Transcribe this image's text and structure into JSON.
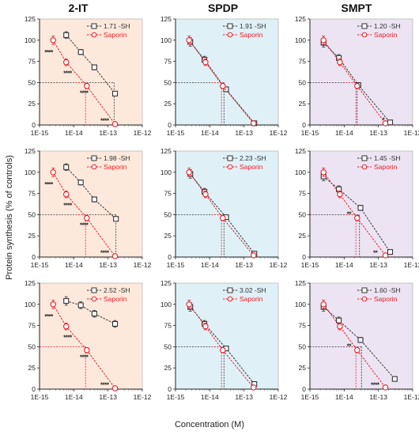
{
  "figure": {
    "column_titles": [
      "2-IT",
      "SPDP",
      "SMPT"
    ],
    "ylabel": "Protein synthesis (% of controls)",
    "xlabel": "Concentration (M)",
    "colors": {
      "conjugate": "#333333",
      "saporin": "#e8202a",
      "bg_2IT": "#fde9dc",
      "bg_SPDP": "#dff0f6",
      "bg_SMPT": "#ece4f3"
    }
  },
  "chart_data": [
    {
      "type": "scatter",
      "row": 0,
      "col": 0,
      "xscale": "log",
      "xlim": [
        1e-15,
        1e-12
      ],
      "ylim": [
        0,
        125
      ],
      "yticks": [
        0,
        25,
        50,
        75,
        100,
        125
      ],
      "xticks": [
        "1E-15",
        "1E-14",
        "1E-13",
        "1E-12"
      ],
      "grid": false,
      "legend": "top-right",
      "series": [
        {
          "name": "1.71 -SH",
          "marker": "square",
          "x": [
            6e-15,
            1.6e-14,
            4e-14,
            1.6e-13
          ],
          "y": [
            106,
            86,
            68,
            37
          ],
          "err": [
            4,
            3,
            3,
            2
          ],
          "ic50": 1.5e-13,
          "ic50_extends_to_yaxis": false
        },
        {
          "name": "Saporin",
          "marker": "circle",
          "x": [
            2.5e-15,
            6e-15,
            2.4e-14,
            1.6e-13
          ],
          "y": [
            100,
            74,
            46,
            1
          ],
          "err": [
            5,
            4,
            3,
            1
          ],
          "ic50": 2.2e-14,
          "ic50_extends_to_yaxis": false
        }
      ],
      "annotations": [
        {
          "text": "****",
          "x": 1.4e-15,
          "y": 86
        },
        {
          "text": "****",
          "x": 5e-15,
          "y": 61
        },
        {
          "text": "****",
          "x": 1.5e-14,
          "y": 38
        },
        {
          "text": "****",
          "x": 6e-14,
          "y": 5
        }
      ]
    },
    {
      "type": "scatter",
      "row": 0,
      "col": 1,
      "xscale": "log",
      "xlim": [
        1e-15,
        1e-12
      ],
      "ylim": [
        0,
        125
      ],
      "yticks": [
        0,
        25,
        50,
        75,
        100,
        125
      ],
      "xticks": [
        "1E-15",
        "1E-14",
        "1E-13",
        "1E-12"
      ],
      "grid": false,
      "legend": "top-right",
      "series": [
        {
          "name": "1.91 -SH",
          "marker": "square",
          "x": [
            2.7e-15,
            7e-15,
            3e-14,
            2e-13
          ],
          "y": [
            98,
            77,
            42,
            2
          ],
          "err": [
            5,
            4,
            2,
            1
          ],
          "ic50": 2.6e-14,
          "ic50_extends_to_yaxis": false
        },
        {
          "name": "Saporin",
          "marker": "circle",
          "x": [
            2.5e-15,
            7.5e-15,
            2.4e-14,
            1.9e-13
          ],
          "y": [
            100,
            74,
            46,
            2
          ],
          "err": [
            5,
            4,
            3,
            1
          ],
          "ic50": 2.2e-14,
          "ic50_extends_to_yaxis": false
        }
      ],
      "annotations": []
    },
    {
      "type": "scatter",
      "row": 0,
      "col": 2,
      "xscale": "log",
      "xlim": [
        1e-15,
        1e-12
      ],
      "ylim": [
        0,
        125
      ],
      "yticks": [
        0,
        25,
        50,
        75,
        100,
        125
      ],
      "xticks": [
        "1E-15",
        "1E-14",
        "1E-13",
        "1E-12"
      ],
      "grid": false,
      "legend": "top-right",
      "series": [
        {
          "name": "1.20 -SH",
          "marker": "square",
          "x": [
            2.5e-15,
            7e-15,
            2.6e-14,
            2.2e-13
          ],
          "y": [
            97,
            79,
            47,
            3
          ],
          "err": [
            5,
            4,
            3,
            1
          ],
          "ic50": 2.4e-14,
          "ic50_extends_to_yaxis": false
        },
        {
          "name": "Saporin",
          "marker": "circle",
          "x": [
            2.5e-15,
            7.5e-15,
            2.4e-14,
            1.6e-13
          ],
          "y": [
            100,
            74,
            46,
            2
          ],
          "err": [
            5,
            4,
            3,
            1
          ],
          "ic50": 2.2e-14,
          "ic50_extends_to_yaxis": false
        }
      ],
      "annotations": [
        {
          "text": "*",
          "x": 1.3e-13,
          "y": 6
        }
      ]
    },
    {
      "type": "scatter",
      "row": 1,
      "col": 0,
      "xscale": "log",
      "xlim": [
        1e-15,
        1e-12
      ],
      "ylim": [
        0,
        125
      ],
      "yticks": [
        0,
        25,
        50,
        75,
        100,
        125
      ],
      "xticks": [
        "1E-15",
        "1E-14",
        "1E-13",
        "1E-12"
      ],
      "grid": false,
      "legend": "top-right",
      "series": [
        {
          "name": "1.98 -SH",
          "marker": "square",
          "x": [
            6e-15,
            1.6e-14,
            4e-14,
            1.7e-13
          ],
          "y": [
            106,
            88,
            68,
            45
          ],
          "err": [
            4,
            3,
            3,
            2
          ],
          "ic50": 1.7e-13,
          "ic50_extends_to_yaxis": false
        },
        {
          "name": "Saporin",
          "marker": "circle",
          "x": [
            2.5e-15,
            6e-15,
            2.4e-14,
            1.6e-13
          ],
          "y": [
            100,
            74,
            46,
            1
          ],
          "err": [
            5,
            4,
            3,
            1
          ],
          "ic50": 2.2e-14,
          "ic50_extends_to_yaxis": false
        }
      ],
      "annotations": [
        {
          "text": "****",
          "x": 1.4e-15,
          "y": 86
        },
        {
          "text": "****",
          "x": 5e-15,
          "y": 61
        },
        {
          "text": "****",
          "x": 1.5e-14,
          "y": 38
        },
        {
          "text": "****",
          "x": 6e-14,
          "y": 5
        }
      ]
    },
    {
      "type": "scatter",
      "row": 1,
      "col": 1,
      "xscale": "log",
      "xlim": [
        1e-15,
        1e-12
      ],
      "ylim": [
        0,
        125
      ],
      "yticks": [
        0,
        25,
        50,
        75,
        100,
        125
      ],
      "xticks": [
        "1E-15",
        "1E-14",
        "1E-13",
        "1E-12"
      ],
      "grid": false,
      "legend": "top-right",
      "series": [
        {
          "name": "2.23 -SH",
          "marker": "square",
          "x": [
            2.7e-15,
            7e-15,
            3e-14,
            2e-13
          ],
          "y": [
            98,
            77,
            47,
            4
          ],
          "err": [
            5,
            4,
            2,
            1
          ],
          "ic50": 2.6e-14,
          "ic50_extends_to_yaxis": false
        },
        {
          "name": "Saporin",
          "marker": "circle",
          "x": [
            2.5e-15,
            7.5e-15,
            2.4e-14,
            1.9e-13
          ],
          "y": [
            100,
            74,
            46,
            2
          ],
          "err": [
            5,
            4,
            3,
            1
          ],
          "ic50": 2.2e-14,
          "ic50_extends_to_yaxis": false
        }
      ],
      "annotations": []
    },
    {
      "type": "scatter",
      "row": 1,
      "col": 2,
      "xscale": "log",
      "xlim": [
        1e-15,
        1e-12
      ],
      "ylim": [
        0,
        125
      ],
      "yticks": [
        0,
        25,
        50,
        75,
        100,
        125
      ],
      "xticks": [
        "1E-15",
        "1E-14",
        "1E-13",
        "1E-12"
      ],
      "grid": false,
      "legend": "top-right",
      "series": [
        {
          "name": "1.45 -SH",
          "marker": "square",
          "x": [
            2.5e-15,
            7e-15,
            3e-14,
            2.2e-13
          ],
          "y": [
            95,
            80,
            58,
            6
          ],
          "err": [
            5,
            4,
            3,
            1
          ],
          "ic50": 2.8e-14,
          "ic50_extends_to_yaxis": false
        },
        {
          "name": "Saporin",
          "marker": "circle",
          "x": [
            2.5e-15,
            7.5e-15,
            2.4e-14,
            1.6e-13
          ],
          "y": [
            100,
            74,
            46,
            2
          ],
          "err": [
            5,
            4,
            3,
            1
          ],
          "ic50": 2.2e-14,
          "ic50_extends_to_yaxis": false
        }
      ],
      "annotations": [
        {
          "text": "**",
          "x": 1.2e-14,
          "y": 51
        },
        {
          "text": "**",
          "x": 7e-14,
          "y": 5
        }
      ]
    },
    {
      "type": "scatter",
      "row": 2,
      "col": 0,
      "xscale": "log",
      "xlim": [
        1e-15,
        1e-12
      ],
      "ylim": [
        0,
        125
      ],
      "yticks": [
        0,
        25,
        50,
        75,
        100,
        125
      ],
      "xticks": [
        "1E-15",
        "1E-14",
        "1E-13",
        "1E-12"
      ],
      "grid": false,
      "legend": "top-right",
      "series": [
        {
          "name": "2.52 -SH",
          "marker": "square",
          "x": [
            6e-15,
            1.6e-14,
            4e-14,
            1.6e-13
          ],
          "y": [
            104,
            99,
            89,
            77
          ],
          "err": [
            5,
            4,
            4,
            4
          ],
          "ic50": null,
          "ic50_extends_to_yaxis": false
        },
        {
          "name": "Saporin",
          "marker": "circle",
          "x": [
            2.5e-15,
            6e-15,
            2.4e-14,
            1.6e-13
          ],
          "y": [
            100,
            74,
            46,
            1
          ],
          "err": [
            5,
            4,
            3,
            1
          ],
          "ic50": 2.2e-14,
          "ic50_extends_to_yaxis": true
        }
      ],
      "annotations": [
        {
          "text": "****",
          "x": 1.4e-15,
          "y": 86
        },
        {
          "text": "****",
          "x": 5e-15,
          "y": 61
        },
        {
          "text": "****",
          "x": 1.5e-14,
          "y": 38
        },
        {
          "text": "****",
          "x": 6e-14,
          "y": 5
        }
      ]
    },
    {
      "type": "scatter",
      "row": 2,
      "col": 1,
      "xscale": "log",
      "xlim": [
        1e-15,
        1e-12
      ],
      "ylim": [
        0,
        125
      ],
      "yticks": [
        0,
        25,
        50,
        75,
        100,
        125
      ],
      "xticks": [
        "1E-15",
        "1E-14",
        "1E-13",
        "1E-12"
      ],
      "grid": false,
      "legend": "top-right",
      "series": [
        {
          "name": "3.02 -SH",
          "marker": "square",
          "x": [
            2.7e-15,
            7e-15,
            3e-14,
            2e-13
          ],
          "y": [
            97,
            77,
            48,
            6
          ],
          "err": [
            5,
            4,
            2,
            1
          ],
          "ic50": 2.6e-14,
          "ic50_extends_to_yaxis": false
        },
        {
          "name": "Saporin",
          "marker": "circle",
          "x": [
            2.5e-15,
            7.5e-15,
            2.4e-14,
            1.9e-13
          ],
          "y": [
            100,
            74,
            46,
            2
          ],
          "err": [
            5,
            4,
            3,
            1
          ],
          "ic50": 2.2e-14,
          "ic50_extends_to_yaxis": false
        }
      ],
      "annotations": []
    },
    {
      "type": "scatter",
      "row": 2,
      "col": 2,
      "xscale": "log",
      "xlim": [
        1e-15,
        1e-12
      ],
      "ylim": [
        0,
        125
      ],
      "yticks": [
        0,
        25,
        50,
        75,
        100,
        125
      ],
      "xticks": [
        "1E-15",
        "1E-14",
        "1E-13",
        "1E-12"
      ],
      "grid": false,
      "legend": "top-right",
      "series": [
        {
          "name": "1.60 -SH",
          "marker": "square",
          "x": [
            2.5e-15,
            7e-15,
            3e-14,
            3e-13
          ],
          "y": [
            97,
            81,
            58,
            12
          ],
          "err": [
            5,
            4,
            3,
            1
          ],
          "ic50": 3.2e-14,
          "ic50_extends_to_yaxis": false
        },
        {
          "name": "Saporin",
          "marker": "circle",
          "x": [
            2.5e-15,
            7.5e-15,
            2.4e-14,
            1.6e-13
          ],
          "y": [
            100,
            74,
            46,
            2
          ],
          "err": [
            5,
            4,
            3,
            1
          ],
          "ic50": 2.2e-14,
          "ic50_extends_to_yaxis": false
        }
      ],
      "annotations": [
        {
          "text": "**",
          "x": 1.2e-14,
          "y": 51
        },
        {
          "text": "****",
          "x": 6e-14,
          "y": 5
        }
      ]
    }
  ]
}
